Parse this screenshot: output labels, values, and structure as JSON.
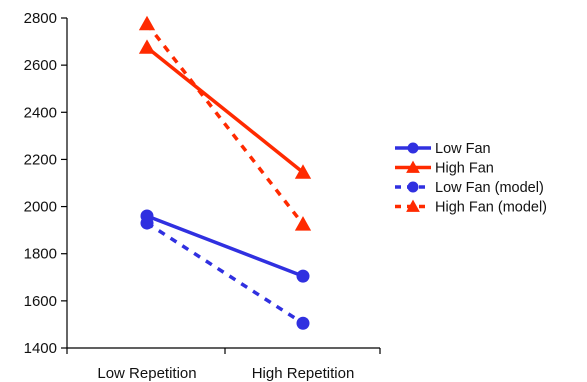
{
  "chart_data": {
    "type": "line",
    "categories": [
      "Low Repetition",
      "High Repetition"
    ],
    "ylim": [
      1400,
      2800
    ],
    "yticks": [
      1400,
      1600,
      1800,
      2000,
      2200,
      2400,
      2600,
      2800
    ],
    "grid": false,
    "legend_position": "right",
    "title": "",
    "xlabel": "",
    "ylabel": "",
    "series": [
      {
        "name": "Low Fan",
        "values": [
          1960,
          1705
        ],
        "color": "#3030e0",
        "marker": "circle",
        "dashed": false
      },
      {
        "name": "High Fan",
        "values": [
          2675,
          2145
        ],
        "color": "#ff2a00",
        "marker": "triangle",
        "dashed": false
      },
      {
        "name": "Low Fan (model)",
        "values": [
          1930,
          1505
        ],
        "color": "#3030e0",
        "marker": "circle",
        "dashed": true
      },
      {
        "name": "High Fan (model)",
        "values": [
          2775,
          1925
        ],
        "color": "#ff2a00",
        "marker": "triangle",
        "dashed": true
      }
    ]
  }
}
